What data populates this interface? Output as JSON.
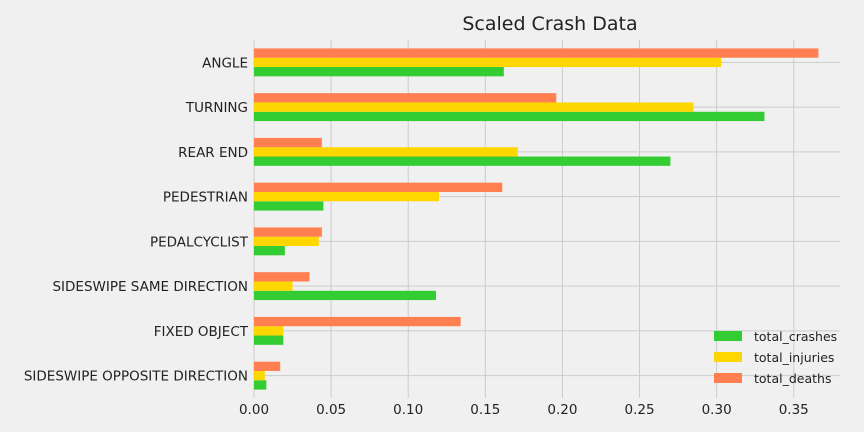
{
  "chart_data": {
    "type": "bar",
    "orientation": "horizontal",
    "title": "Scaled Crash Data",
    "xlabel": "",
    "ylabel": "",
    "categories": [
      "ANGLE",
      "TURNING",
      "REAR END",
      "PEDESTRIAN",
      "PEDALCYCLIST",
      "SIDESWIPE SAME DIRECTION",
      "FIXED OBJECT",
      "SIDESWIPE OPPOSITE DIRECTION"
    ],
    "series": [
      {
        "name": "total_crashes",
        "color": "#33cc33",
        "values": [
          0.162,
          0.331,
          0.27,
          0.045,
          0.02,
          0.118,
          0.019,
          0.008
        ]
      },
      {
        "name": "total_injuries",
        "color": "#ffd700",
        "values": [
          0.303,
          0.285,
          0.171,
          0.12,
          0.042,
          0.025,
          0.019,
          0.007
        ]
      },
      {
        "name": "total_deaths",
        "color": "#ff7f50",
        "values": [
          0.366,
          0.196,
          0.044,
          0.161,
          0.044,
          0.036,
          0.134,
          0.017
        ]
      }
    ],
    "xlim": [
      0,
      0.38
    ],
    "xticks": [
      "0.00",
      "0.05",
      "0.10",
      "0.15",
      "0.20",
      "0.25",
      "0.30",
      "0.35"
    ],
    "grid": true,
    "legend_position": "bottom-right"
  }
}
